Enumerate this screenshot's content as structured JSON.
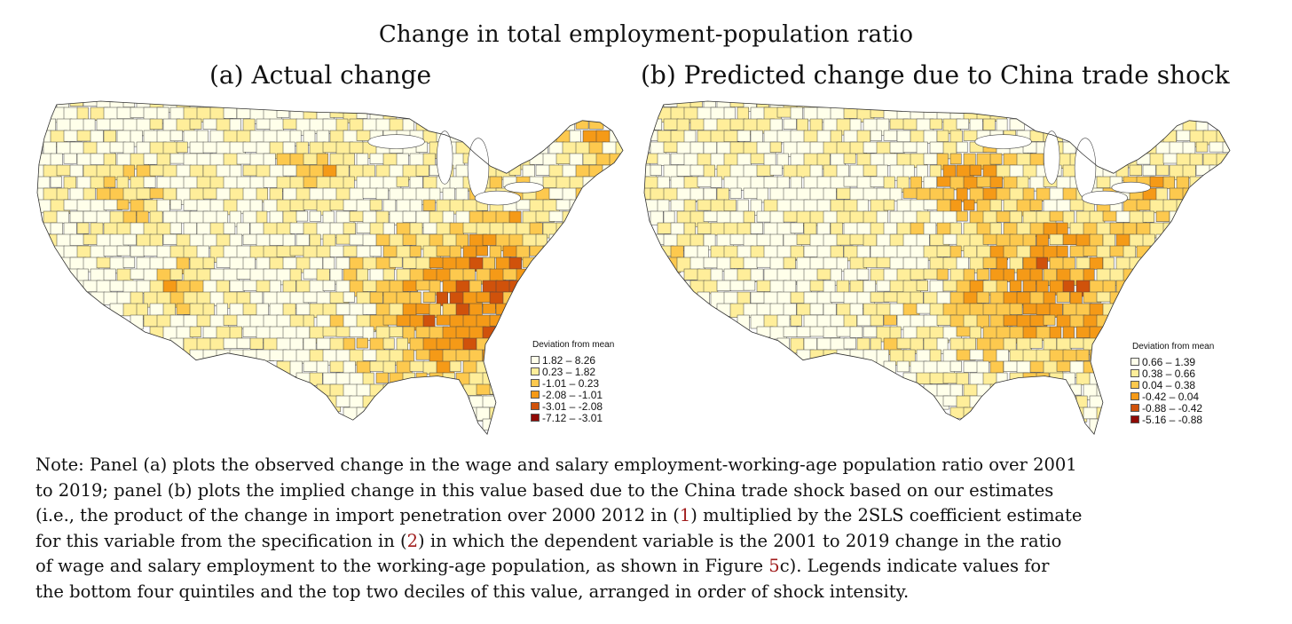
{
  "figure_title": "Change in total employment-population ratio",
  "panels": [
    {
      "id": "a",
      "title": "(a) Actual change",
      "legend": {
        "title": "Deviation from mean",
        "entries": [
          {
            "label": "1.82 – 8.26",
            "color": "#ffffea"
          },
          {
            "label": "0.23 – 1.82",
            "color": "#ffee9a"
          },
          {
            "label": "-1.01 – 0.23",
            "color": "#fdc94e"
          },
          {
            "label": "-2.08 – -1.01",
            "color": "#f59a17"
          },
          {
            "label": "-3.01 – -2.08",
            "color": "#d0520b"
          },
          {
            "label": "-7.12 – -3.01",
            "color": "#8f0a06"
          }
        ]
      }
    },
    {
      "id": "b",
      "title": "(b) Predicted change due to China trade shock",
      "legend": {
        "title": "Deviation from mean",
        "entries": [
          {
            "label": "0.66 – 1.39",
            "color": "#ffffea"
          },
          {
            "label": "0.38 – 0.66",
            "color": "#ffee9a"
          },
          {
            "label": "0.04 – 0.38",
            "color": "#fdc94e"
          },
          {
            "label": "-0.42 – 0.04",
            "color": "#f59a17"
          },
          {
            "label": "-0.88 – -0.42",
            "color": "#d0520b"
          },
          {
            "label": "-5.16 – -0.88",
            "color": "#8f0a06"
          }
        ]
      }
    }
  ],
  "note": {
    "line1": "Note: Panel (a) plots the observed change in the wage and salary employment-working-age population ratio over 2001",
    "line2": "to 2019; panel (b) plots the implied change in this value based due to the China trade shock based on our estimates",
    "line3_a": "(i.e., the product of the change in import penetration over 2000 2012 in (",
    "ref1": "1",
    "line3_b": ") multiplied by the 2SLS coefficient estimate",
    "line4_a": "for this variable from the specification in (",
    "ref2": "2",
    "line4_b": ") in which the dependent variable is the 2001 to 2019 change in the ratio",
    "line5_a": "of wage and salary employment to the working-age population, as shown in Figure ",
    "ref3": "5",
    "line5_b": "c).  Legends indicate values for",
    "line6": "the bottom four quintiles and the top two deciles of this value, arranged in order of shock intensity."
  }
}
